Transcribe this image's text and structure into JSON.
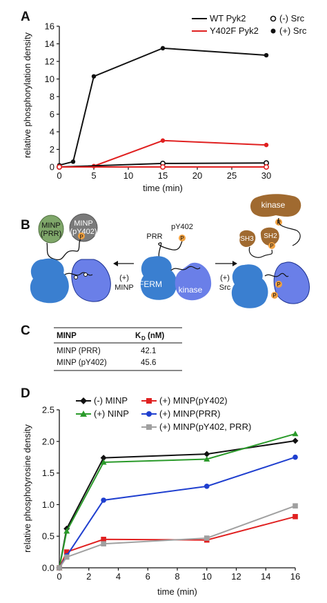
{
  "panels": {
    "a": "A",
    "b": "B",
    "c": "C",
    "d": "D"
  },
  "chart_data": [
    {
      "type": "line",
      "panel": "A",
      "xlabel": "time (min)",
      "ylabel": "relative phosphorylation density",
      "xlim": [
        0,
        30
      ],
      "ylim": [
        0,
        16
      ],
      "xticks": [
        0,
        5,
        10,
        15,
        20,
        25,
        30
      ],
      "yticks": [
        0,
        2,
        4,
        6,
        8,
        10,
        12,
        14,
        16
      ],
      "legend": {
        "placement": "top-right",
        "series_entries": [
          {
            "label": "WT Pyk2",
            "color": "#111111"
          },
          {
            "label": "Y402F Pyk2",
            "color": "#e02020"
          }
        ],
        "marker_entries": [
          {
            "label": "(-) Src",
            "marker": "open"
          },
          {
            "label": "(+) Src",
            "marker": "filled"
          }
        ]
      },
      "series": [
        {
          "color": "#111111",
          "marker": "filled",
          "x": [
            0,
            2,
            5,
            15,
            30
          ],
          "y": [
            0.2,
            0.6,
            10.3,
            13.5,
            12.7
          ]
        },
        {
          "color": "#e02020",
          "marker": "filled",
          "x": [
            0,
            5,
            15,
            30
          ],
          "y": [
            0.0,
            0.1,
            3.0,
            2.5
          ]
        },
        {
          "color": "#111111",
          "marker": "open",
          "x": [
            0,
            15,
            30
          ],
          "y": [
            0.0,
            0.4,
            0.45
          ]
        },
        {
          "color": "#e02020",
          "marker": "open",
          "x": [
            0,
            15,
            30
          ],
          "y": [
            0.0,
            0.0,
            0.0
          ]
        }
      ]
    },
    {
      "type": "table",
      "panel": "C",
      "headers": [
        "MINP",
        "K",
        "D",
        "(nM)"
      ],
      "rows": [
        [
          "MINP (PRR)",
          "42.1"
        ],
        [
          "MINP (pY402)",
          "45.6"
        ]
      ]
    },
    {
      "type": "line",
      "panel": "D",
      "xlabel": "time (min)",
      "ylabel": "relative phosphotyrosine density",
      "xlim": [
        0,
        16
      ],
      "ylim": [
        0,
        2.5
      ],
      "xticks": [
        0,
        2,
        4,
        6,
        8,
        10,
        12,
        14,
        16
      ],
      "yticks": [
        "0.0",
        "0.5",
        "1.0",
        "1.5",
        "2.0",
        "2.5"
      ],
      "legend_placement": "top-left",
      "series": [
        {
          "name": "(-) MINP",
          "color": "#111111",
          "marker": "diamond",
          "x": [
            0,
            0.5,
            3,
            10,
            16
          ],
          "y": [
            0.0,
            0.62,
            1.74,
            1.8,
            2.01
          ]
        },
        {
          "name": "(+) NINP",
          "color": "#2a9a2a",
          "marker": "triangle",
          "x": [
            0,
            0.5,
            3,
            10,
            16
          ],
          "y": [
            0.0,
            0.58,
            1.67,
            1.72,
            2.12
          ]
        },
        {
          "name": "(+) MINP(pY402)",
          "color": "#e02020",
          "marker": "square",
          "x": [
            0,
            0.5,
            3,
            10,
            16
          ],
          "y": [
            0.0,
            0.25,
            0.45,
            0.44,
            0.81
          ]
        },
        {
          "name": "(+) MINP(PRR)",
          "color": "#1f3fcf",
          "marker": "circle",
          "x": [
            0,
            0.5,
            3,
            10,
            16
          ],
          "y": [
            0.0,
            0.19,
            1.07,
            1.29,
            1.75
          ]
        },
        {
          "name": "(+) MINP(pY402, PRR)",
          "color": "#a0a0a0",
          "marker": "square",
          "x": [
            0,
            0.5,
            3,
            10,
            16
          ],
          "y": [
            0.0,
            0.17,
            0.38,
            0.47,
            0.98
          ]
        }
      ]
    }
  ],
  "diagram": {
    "left": {
      "minp_prr_1": "MINP",
      "minp_prr_2": "(PRR)",
      "minp_py_1": "MINP",
      "minp_py_2": "(pY402)",
      "arrow_1": "(+)",
      "arrow_2": "MINP"
    },
    "center": {
      "prr": "PRR",
      "py402": "pY402",
      "ferm": "FERM",
      "kinase": "kinase"
    },
    "right": {
      "kinase": "kinase",
      "sh3": "SH3",
      "sh2": "SH2",
      "arrow_1": "(+)",
      "arrow_2": "Src"
    },
    "p_label": "P",
    "colors": {
      "blue_dark": "#3a7fd0",
      "blue_light": "#6a7fe8",
      "green": "#7fa76a",
      "gray": "#7a7a7a",
      "brown": "#a06a30",
      "orange": "#f0a040"
    }
  }
}
